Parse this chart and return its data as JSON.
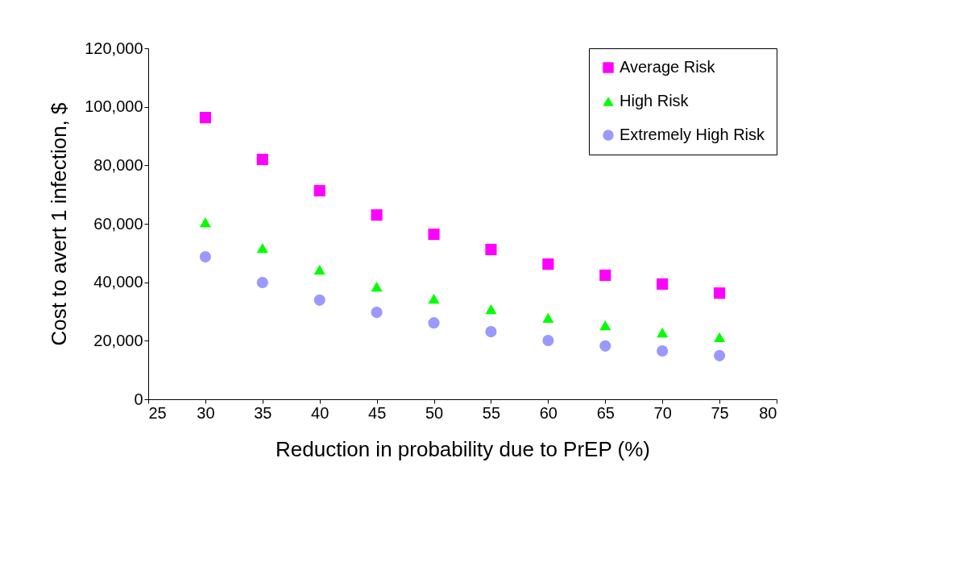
{
  "chart_data": {
    "type": "scatter",
    "xlabel": "Reduction in probability due to PrEP (%)",
    "ylabel": "Cost to avert 1 infection, $",
    "x": [
      30,
      35,
      40,
      45,
      50,
      55,
      60,
      65,
      70,
      75
    ],
    "series": [
      {
        "name": "Average Risk",
        "color": "#ff00ff",
        "marker": "square",
        "values": [
          96300,
          82000,
          71300,
          63000,
          56400,
          51200,
          46200,
          42400,
          39400,
          36300
        ]
      },
      {
        "name": "High Risk",
        "color": "#00ff00",
        "marker": "triangle",
        "values": [
          60500,
          51700,
          44300,
          38500,
          34400,
          30800,
          27800,
          25300,
          22800,
          21200
        ]
      },
      {
        "name": "Extremely High Risk",
        "color": "#9999ff",
        "marker": "circle",
        "values": [
          48700,
          39900,
          33900,
          29700,
          26100,
          23100,
          20100,
          18200,
          16500,
          14900
        ]
      }
    ],
    "xlim": [
      25,
      80
    ],
    "xticks": [
      25,
      30,
      35,
      40,
      45,
      50,
      55,
      60,
      65,
      70,
      75,
      80
    ],
    "ylim": [
      0,
      120000
    ],
    "yticks": [
      0,
      {
        "value": 20000,
        "label": "20,000"
      },
      {
        "value": 40000,
        "label": "40,000"
      },
      {
        "value": 60000,
        "label": "60,000"
      },
      {
        "value": 80000,
        "label": "80,000"
      },
      {
        "value": 100000,
        "label": "100,000"
      },
      {
        "value": 120000,
        "label": "120,000"
      }
    ],
    "grid": false,
    "legend": "top right"
  }
}
